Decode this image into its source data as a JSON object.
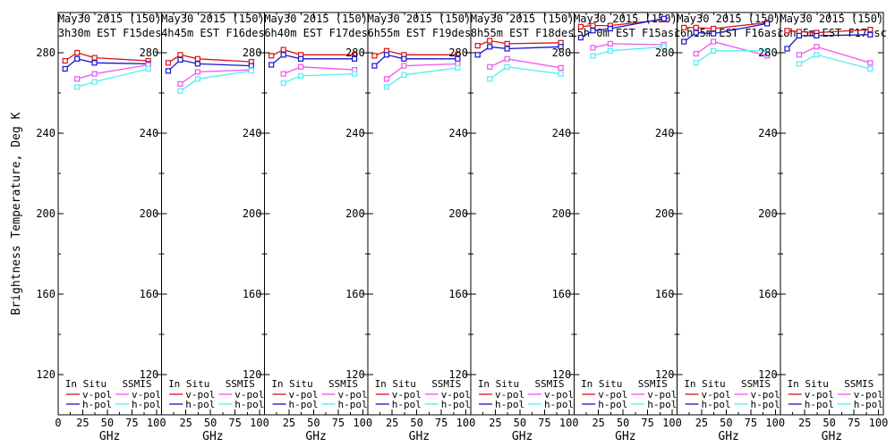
{
  "figure": {
    "background": "#ffffff",
    "ylabel": "Brightness Temperature, Deg K",
    "xlabel": "GHz"
  },
  "legend": {
    "insitu_header": "In Situ",
    "ssmis_header": "SSMIS",
    "vpol_label": "v-pol",
    "hpol_label": "h-pol"
  },
  "colors": {
    "insitu_v": "#dd1111",
    "insitu_h": "#1414cc",
    "ssmis_v": "#ee55ee",
    "ssmis_h": "#55eeee",
    "frame": "#000000"
  },
  "chart_data": {
    "type": "line",
    "title_line1": "May30 2015 (150)",
    "ylabel": "Brightness Temperature, Deg K",
    "xlabel": "GHz",
    "ylim": [
      100,
      300
    ],
    "xlim": [
      0,
      105
    ],
    "yticks": [
      280,
      240,
      200,
      160,
      120
    ],
    "yticks_minor": [
      260,
      220,
      180,
      140
    ],
    "xticks": [
      0,
      25,
      50,
      75,
      100
    ],
    "xticks_minor": [
      12.5,
      37.5,
      62.5,
      87.5
    ],
    "grid": false,
    "legend_position": "bottom-inside",
    "insitu_freqs_ghz": [
      7,
      19.35,
      37,
      91.655
    ],
    "ssmis_freqs_ghz": [
      19.35,
      37,
      91.655
    ],
    "series_names": [
      "In Situ v-pol",
      "In Situ h-pol",
      "SSMIS v-pol",
      "SSMIS h-pol"
    ],
    "panels": [
      {
        "subtitle": "3h30m EST F15des",
        "insitu_v": [
          276,
          280,
          277.5,
          276
        ],
        "insitu_h": [
          272,
          277,
          275,
          274.5
        ],
        "ssmis_v": [
          267,
          269.5,
          274
        ],
        "ssmis_h": [
          263,
          265.5,
          272
        ]
      },
      {
        "subtitle": "4h45m EST F16des",
        "insitu_v": [
          275,
          279,
          277,
          275.5
        ],
        "insitu_h": [
          271,
          276.5,
          274.5,
          273.5
        ],
        "ssmis_v": [
          264.5,
          270.5,
          271.5
        ],
        "ssmis_h": [
          261,
          267,
          271
        ]
      },
      {
        "subtitle": "6h40m EST F17des",
        "insitu_v": [
          278.5,
          281.5,
          279,
          279
        ],
        "insitu_h": [
          274,
          279,
          277,
          277
        ],
        "ssmis_v": [
          269.5,
          273,
          271.5
        ],
        "ssmis_h": [
          265,
          268.5,
          269.5
        ]
      },
      {
        "subtitle": "6h55m EST F19des",
        "insitu_v": [
          278.5,
          281,
          279,
          279
        ],
        "insitu_h": [
          273.5,
          279,
          277,
          277
        ],
        "ssmis_v": [
          267,
          273.5,
          274.5
        ],
        "ssmis_h": [
          263,
          269,
          272.5
        ]
      },
      {
        "subtitle": "8h55m EST F18des",
        "insitu_v": [
          283.5,
          286,
          284.5,
          285
        ],
        "insitu_h": [
          279,
          283,
          282,
          283
        ],
        "ssmis_v": [
          273,
          277,
          272.5
        ],
        "ssmis_h": [
          267,
          273,
          269.5
        ]
      },
      {
        "subtitle": "15h 0m EST F15asc",
        "insitu_v": [
          293,
          293.5,
          293.5,
          296.5
        ],
        "insitu_h": [
          287.5,
          291,
          292,
          297
        ],
        "ssmis_v": [
          282.5,
          284.5,
          284
        ],
        "ssmis_h": [
          278.5,
          281,
          283
        ]
      },
      {
        "subtitle": "16h15m EST F16asc",
        "insitu_v": [
          292.5,
          292.5,
          292,
          295
        ],
        "insitu_h": [
          285.5,
          290,
          289.5,
          294.5
        ],
        "ssmis_v": [
          279.5,
          285.5,
          278.5
        ],
        "ssmis_h": [
          275,
          281,
          281
        ]
      },
      {
        "subtitle": "18h 5m EST F17asc",
        "insitu_v": [
          291,
          290.5,
          290,
          291.5
        ],
        "insitu_h": [
          282,
          288.5,
          288.5,
          289
        ],
        "ssmis_v": [
          279,
          283,
          275
        ],
        "ssmis_h": [
          274.5,
          279,
          272
        ]
      }
    ]
  }
}
